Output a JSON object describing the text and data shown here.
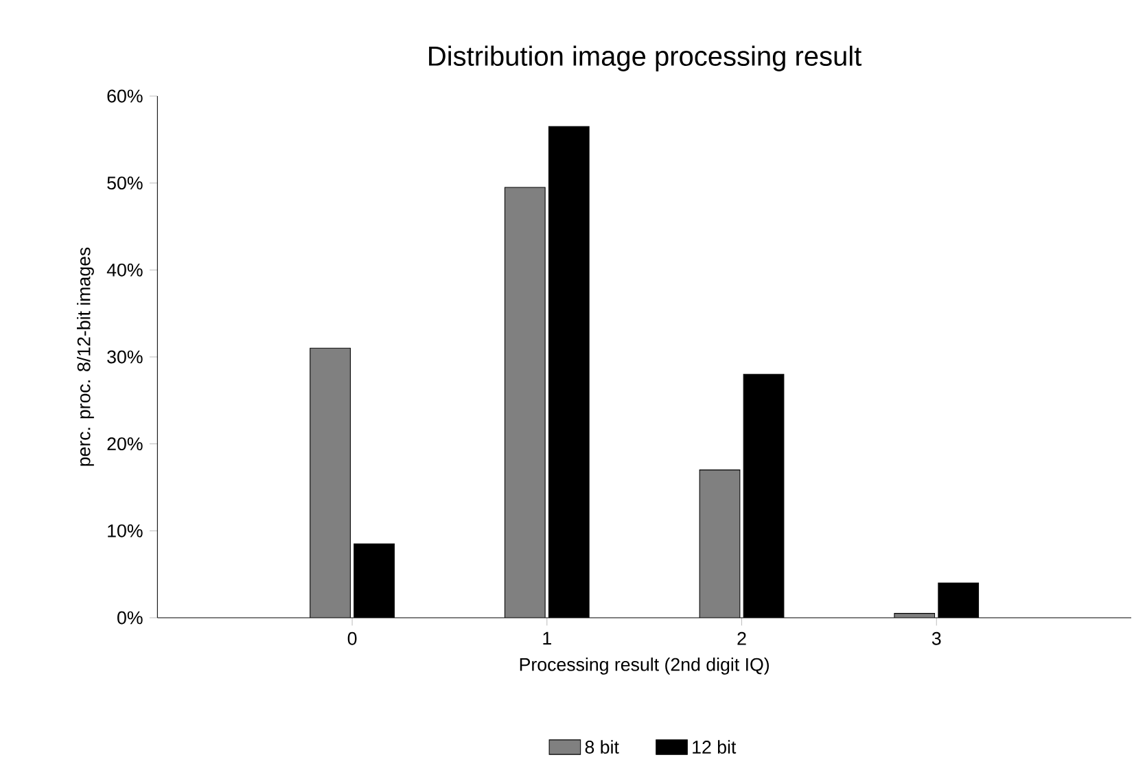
{
  "chart_data": {
    "type": "bar",
    "title": "Distribution image processing result",
    "xlabel": "Processing result (2nd digit IQ)",
    "ylabel": "perc. proc. 8/12-bit images",
    "categories": [
      "0",
      "1",
      "2",
      "3"
    ],
    "series": [
      {
        "name": "8 bit",
        "color": "#808080",
        "values": [
          31,
          49.5,
          17,
          0.5
        ]
      },
      {
        "name": "12 bit",
        "color": "#000000",
        "values": [
          8.5,
          56.5,
          28,
          4
        ]
      }
    ],
    "ylim": [
      0,
      60
    ],
    "yticks": [
      {
        "value": 0,
        "label": "0%"
      },
      {
        "value": 10,
        "label": "10%"
      },
      {
        "value": 20,
        "label": "20%"
      },
      {
        "value": 30,
        "label": "30%"
      },
      {
        "value": 40,
        "label": "40%"
      },
      {
        "value": 50,
        "label": "50%"
      },
      {
        "value": 60,
        "label": "60%"
      }
    ],
    "grid": false,
    "legend": "bottom"
  }
}
